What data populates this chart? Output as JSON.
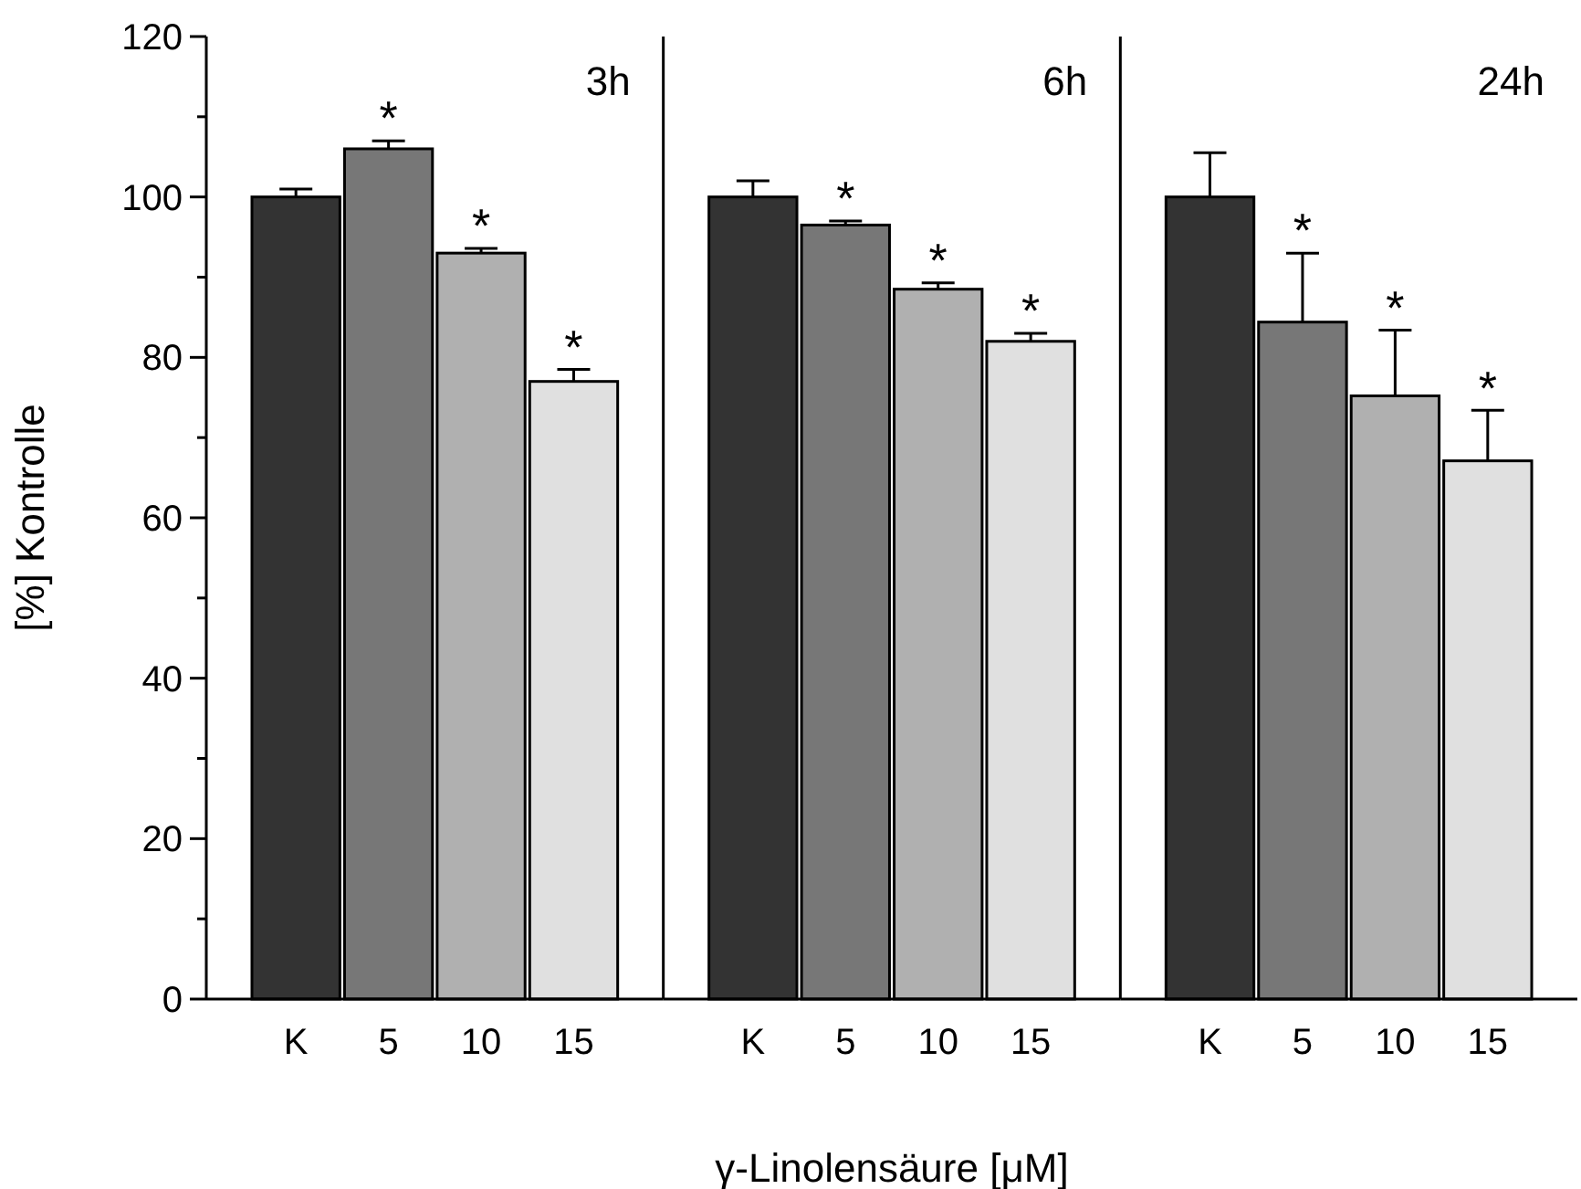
{
  "chart_data": [
    {
      "type": "bar",
      "ylabel": "[%] Kontrolle",
      "categories": [
        "K",
        "5",
        "10",
        "15"
      ],
      "values": [
        100,
        106,
        93,
        77
      ],
      "errors": [
        1,
        1,
        0.6,
        1.5
      ],
      "colors": [
        "#333333",
        "#777777",
        "#b0b0b0",
        "#e0e0e0"
      ],
      "ylim": [
        0,
        120
      ],
      "yticks": [
        0,
        {
          "value": 10,
          "label": null
        },
        20,
        {
          "value": 30,
          "label": null
        },
        40,
        {
          "value": 50,
          "label": null
        },
        60,
        {
          "value": 70,
          "label": null
        },
        80,
        {
          "value": 90,
          "label": null
        },
        100,
        {
          "value": 110,
          "label": null
        },
        120
      ],
      "annotations": [
        "3h",
        {
          "text": "*",
          "x": "5",
          "y": 106
        },
        {
          "text": "*",
          "x": "10",
          "y": 93
        },
        {
          "text": "*",
          "x": "15",
          "y": 77
        }
      ]
    },
    {
      "type": "bar",
      "xlabel": "γ-Linolensäure [μM]",
      "categories": [
        "K",
        "5",
        "10",
        "15"
      ],
      "values": [
        100,
        96.5,
        88.5,
        82
      ],
      "errors": [
        2,
        0.5,
        0.8,
        1
      ],
      "colors": [
        "#333333",
        "#777777",
        "#b0b0b0",
        "#e0e0e0"
      ],
      "ylim": [
        0,
        120
      ],
      "tick_labels": "x",
      "annotations": [
        "6h",
        {
          "text": "*",
          "x": "5",
          "y": 96.5
        },
        {
          "text": "*",
          "x": "10",
          "y": 88.5
        },
        {
          "text": "*",
          "x": "15",
          "y": 82
        }
      ]
    },
    {
      "type": "bar",
      "categories": [
        "K",
        "5",
        "10",
        "15"
      ],
      "values": [
        100,
        84.4,
        75.2,
        67.1
      ],
      "errors": [
        5.5,
        8.6,
        8.2,
        6.3
      ],
      "colors": [
        "#333333",
        "#777777",
        "#b0b0b0",
        "#e0e0e0"
      ],
      "ylim": [
        0,
        120
      ],
      "tick_labels": "x",
      "annotations": [
        "24h",
        {
          "text": "*",
          "x": "5",
          "y": 84.4
        },
        {
          "text": "*",
          "x": "10",
          "y": 75.2
        },
        {
          "text": "*",
          "x": "15",
          "y": 67.1
        }
      ]
    }
  ]
}
